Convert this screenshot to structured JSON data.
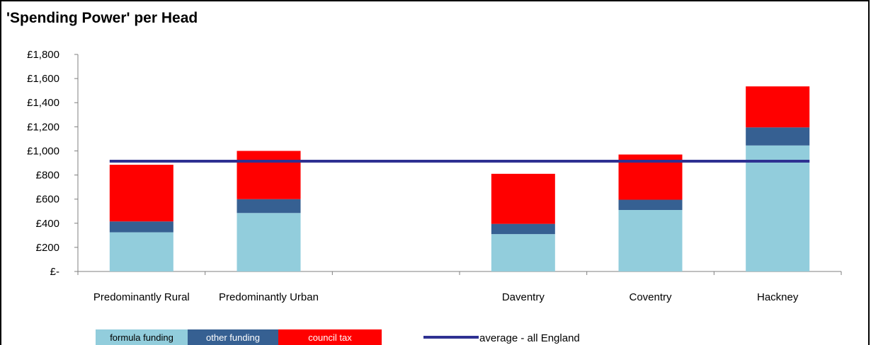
{
  "chart_data": {
    "type": "bar",
    "stacked": true,
    "title": "'Spending Power' per Head",
    "categories": [
      "Predominantly Rural",
      "Predominantly Urban",
      "",
      "Daventry",
      "Coventry",
      "Hackney"
    ],
    "series": [
      {
        "name": "formula funding",
        "color": "#92cddc",
        "text_color": "#000000",
        "values": [
          325,
          485,
          null,
          310,
          510,
          1045
        ]
      },
      {
        "name": "other funding",
        "color": "#366092",
        "text_color": "#ffffff",
        "values": [
          90,
          115,
          null,
          85,
          85,
          150
        ]
      },
      {
        "name": "council tax",
        "color": "#ff0000",
        "text_color": "#ffffff",
        "values": [
          470,
          400,
          null,
          415,
          375,
          340
        ]
      }
    ],
    "line": {
      "name": "average - all England",
      "color": "#2e3192",
      "value": 915
    },
    "ylim": [
      0,
      1800
    ],
    "yticks": [
      0,
      200,
      400,
      600,
      800,
      1000,
      1200,
      1400,
      1600,
      1800
    ],
    "ytick_labels": [
      "£-",
      "£200",
      "£400",
      "£600",
      "£800",
      "£1,000",
      "£1,200",
      "£1,400",
      "£1,600",
      "£1,800"
    ],
    "xlabel": "",
    "ylabel": "",
    "grid": false,
    "legend_position": "bottom-left"
  }
}
